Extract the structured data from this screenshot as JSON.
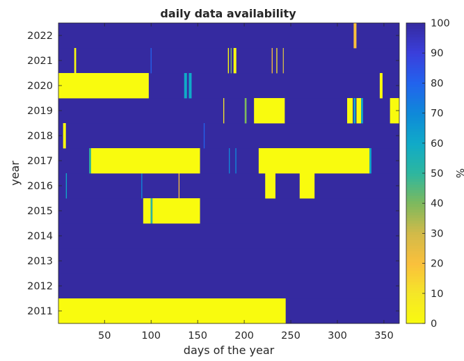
{
  "chart_data": {
    "type": "heatmap",
    "title": "daily data availability",
    "xlabel": "days of the year",
    "ylabel": "year",
    "xlim": [
      1,
      366
    ],
    "xticks": [
      50,
      100,
      150,
      200,
      250,
      300,
      350
    ],
    "years": [
      2011,
      2012,
      2013,
      2014,
      2015,
      2016,
      2017,
      2018,
      2019,
      2020,
      2021,
      2022
    ],
    "default_value": 100,
    "missing_ranges": [
      {
        "year": 2011,
        "start": 1,
        "end": 244,
        "value": 0
      },
      {
        "year": 2015,
        "start": 92,
        "end": 99,
        "value": 0
      },
      {
        "year": 2015,
        "start": 100,
        "end": 101,
        "value": 50
      },
      {
        "year": 2015,
        "start": 102,
        "end": 152,
        "value": 0
      },
      {
        "year": 2016,
        "start": 9,
        "end": 9,
        "value": 60
      },
      {
        "year": 2016,
        "start": 90,
        "end": 90,
        "value": 70
      },
      {
        "year": 2016,
        "start": 130,
        "end": 130,
        "value": 20
      },
      {
        "year": 2016,
        "start": 223,
        "end": 233,
        "value": 0
      },
      {
        "year": 2016,
        "start": 260,
        "end": 275,
        "value": 0
      },
      {
        "year": 2017,
        "start": 34,
        "end": 35,
        "value": 50
      },
      {
        "year": 2017,
        "start": 36,
        "end": 152,
        "value": 0
      },
      {
        "year": 2017,
        "start": 184,
        "end": 184,
        "value": 70
      },
      {
        "year": 2017,
        "start": 191,
        "end": 191,
        "value": 70
      },
      {
        "year": 2017,
        "start": 216,
        "end": 334,
        "value": 0
      },
      {
        "year": 2017,
        "start": 335,
        "end": 336,
        "value": 60
      },
      {
        "year": 2018,
        "start": 6,
        "end": 8,
        "value": 0
      },
      {
        "year": 2018,
        "start": 157,
        "end": 157,
        "value": 80
      },
      {
        "year": 2019,
        "start": 178,
        "end": 178,
        "value": 10
      },
      {
        "year": 2019,
        "start": 201,
        "end": 202,
        "value": 40
      },
      {
        "year": 2019,
        "start": 211,
        "end": 243,
        "value": 0
      },
      {
        "year": 2019,
        "start": 311,
        "end": 316,
        "value": 0
      },
      {
        "year": 2019,
        "start": 318,
        "end": 319,
        "value": 60
      },
      {
        "year": 2019,
        "start": 321,
        "end": 325,
        "value": 0
      },
      {
        "year": 2019,
        "start": 326,
        "end": 327,
        "value": 60
      },
      {
        "year": 2019,
        "start": 357,
        "end": 366,
        "value": 0
      },
      {
        "year": 2020,
        "start": 1,
        "end": 97,
        "value": 0
      },
      {
        "year": 2020,
        "start": 136,
        "end": 138,
        "value": 60
      },
      {
        "year": 2020,
        "start": 141,
        "end": 143,
        "value": 60
      },
      {
        "year": 2020,
        "start": 346,
        "end": 348,
        "value": 0
      },
      {
        "year": 2021,
        "start": 18,
        "end": 19,
        "value": 0
      },
      {
        "year": 2021,
        "start": 100,
        "end": 100,
        "value": 80
      },
      {
        "year": 2021,
        "start": 183,
        "end": 183,
        "value": 0
      },
      {
        "year": 2021,
        "start": 186,
        "end": 186,
        "value": 40
      },
      {
        "year": 2021,
        "start": 189,
        "end": 191,
        "value": 0
      },
      {
        "year": 2021,
        "start": 230,
        "end": 230,
        "value": 20
      },
      {
        "year": 2021,
        "start": 235,
        "end": 235,
        "value": 10
      },
      {
        "year": 2021,
        "start": 242,
        "end": 242,
        "value": 30
      },
      {
        "year": 2022,
        "start": 318,
        "end": 320,
        "value": 20
      }
    ],
    "colorbar": {
      "label": "%",
      "min": 0,
      "max": 100,
      "ticks": [
        0,
        10,
        20,
        30,
        40,
        50,
        60,
        70,
        80,
        90,
        100
      ],
      "colormap": "parula"
    },
    "grid": false
  }
}
